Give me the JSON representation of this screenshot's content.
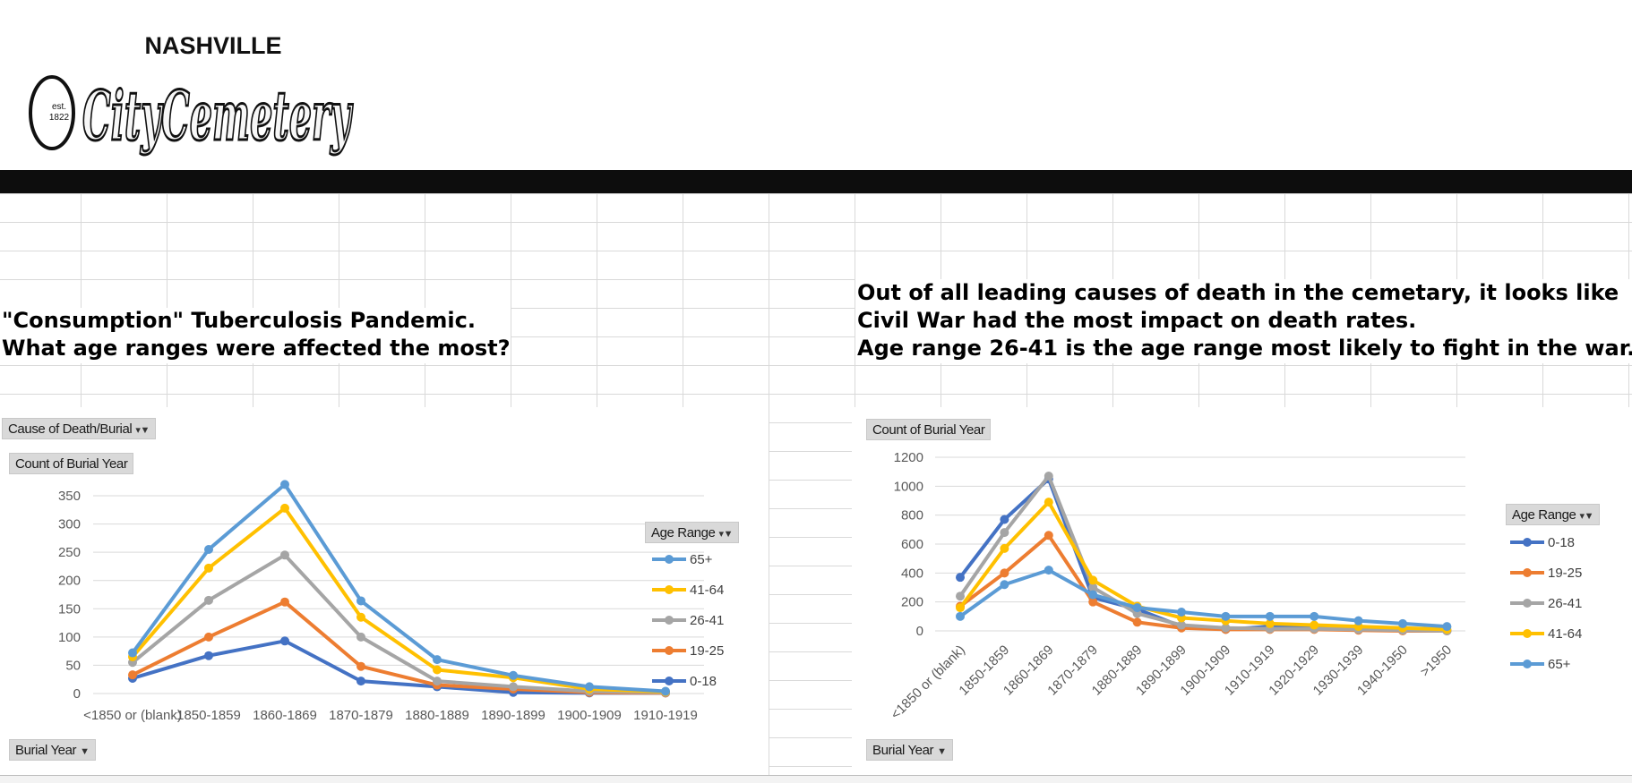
{
  "logo": {
    "top": "NASHVILLE",
    "script": "CityCemetery",
    "est": "est.",
    "year": "1822"
  },
  "left_heading": {
    "line1": "\"Consumption\" Tuberculosis Pandemic.",
    "line2": "What age ranges were affected the most?"
  },
  "right_heading": {
    "line1": "Out of all leading causes of death in the cemetary, it looks like",
    "line2": "Civil War had the most impact on death rates.",
    "line3": "Age range 26-41 is the age range most likely to fight in the war."
  },
  "left_chart": {
    "filter_button": "Cause of Death/Burial",
    "value_button": "Count of Burial Year",
    "axis_button": "Burial Year",
    "legend_button": "Age Range"
  },
  "right_chart": {
    "value_button": "Count of Burial Year",
    "axis_button": "Burial Year",
    "legend_button": "Age Range"
  },
  "colors": {
    "0-18": "#4472c4",
    "19-25": "#ed7d31",
    "26-41": "#a5a5a5",
    "41-64": "#ffc000",
    "65+": "#5b9bd5"
  },
  "chart_data": [
    {
      "type": "line",
      "ylim": [
        0,
        350
      ],
      "yticks": [
        0,
        50,
        100,
        150,
        200,
        250,
        300,
        350
      ],
      "categories": [
        "<1850 or (blank)",
        "1850-1859",
        "1860-1869",
        "1870-1879",
        "1880-1889",
        "1890-1899",
        "1900-1909",
        "1910-1919"
      ],
      "legend_order": [
        "65+",
        "41-64",
        "26-41",
        "19-25",
        "0-18"
      ],
      "series": [
        {
          "name": "0-18",
          "color": "#4472c4",
          "values": [
            27,
            67,
            93,
            22,
            12,
            2,
            1,
            1
          ]
        },
        {
          "name": "19-25",
          "color": "#ed7d31",
          "values": [
            33,
            100,
            162,
            48,
            15,
            8,
            2,
            1
          ]
        },
        {
          "name": "26-41",
          "color": "#a5a5a5",
          "values": [
            55,
            165,
            245,
            100,
            22,
            12,
            4,
            2
          ]
        },
        {
          "name": "41-64",
          "color": "#ffc000",
          "values": [
            65,
            222,
            328,
            135,
            42,
            28,
            8,
            3
          ]
        },
        {
          "name": "65+",
          "color": "#5b9bd5",
          "values": [
            72,
            255,
            370,
            164,
            60,
            32,
            12,
            4
          ]
        }
      ]
    },
    {
      "type": "line",
      "ylim": [
        0,
        1200
      ],
      "yticks": [
        0,
        200,
        400,
        600,
        800,
        1000,
        1200
      ],
      "categories": [
        "<1850 or (blank)",
        "1850-1859",
        "1860-1869",
        "1870-1879",
        "1880-1889",
        "1890-1899",
        "1900-1909",
        "1910-1919",
        "1920-1929",
        "1930-1939",
        "1940-1950",
        ">1950"
      ],
      "legend_order": [
        "0-18",
        "19-25",
        "26-41",
        "41-64",
        "65+"
      ],
      "series": [
        {
          "name": "0-18",
          "color": "#4472c4",
          "values": [
            370,
            770,
            1050,
            230,
            150,
            30,
            10,
            30,
            20,
            10,
            5,
            0
          ]
        },
        {
          "name": "19-25",
          "color": "#ed7d31",
          "values": [
            170,
            400,
            660,
            200,
            60,
            20,
            10,
            10,
            10,
            5,
            0,
            0
          ]
        },
        {
          "name": "26-41",
          "color": "#a5a5a5",
          "values": [
            240,
            680,
            1070,
            300,
            120,
            40,
            20,
            15,
            15,
            10,
            5,
            0
          ]
        },
        {
          "name": "41-64",
          "color": "#ffc000",
          "values": [
            160,
            570,
            890,
            350,
            170,
            90,
            70,
            50,
            40,
            30,
            20,
            10
          ]
        },
        {
          "name": "65+",
          "color": "#5b9bd5",
          "values": [
            100,
            320,
            420,
            250,
            160,
            130,
            100,
            100,
            100,
            70,
            50,
            30
          ]
        }
      ]
    }
  ]
}
